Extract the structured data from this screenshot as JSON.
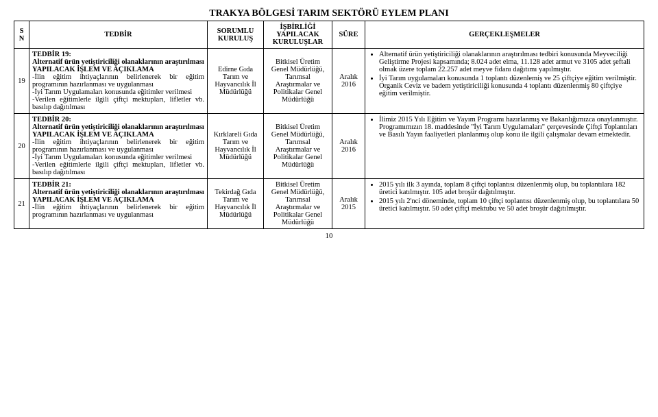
{
  "page_title": "TRAKYA BÖLGESİ TARIM SEKTÖRÜ EYLEM PLANI",
  "headers": {
    "sn": "S N",
    "tedbir": "TEDBİR",
    "sorumlu": "SORUMLU KURULUŞ",
    "isbirligi": "İŞBİRLİĞİ YAPILACAK KURULUŞLAR",
    "sure": "SÜRE",
    "gercek": "GERÇEKLEŞMELER"
  },
  "rows": [
    {
      "sn": "19",
      "tedbir_title": "TEDBİR 19:",
      "tedbir_sub": "Alternatif ürün yetiştiriciliği olanaklarının araştırılması",
      "yapilacak_title": "YAPILACAK İŞLEM VE AÇIKLAMA",
      "tedbir_body": "-İlin eğitim ihtiyaçlarının belirlenerek bir eğitim programının hazırlanması ve uygulanması\n-İyi Tarım Uygulamaları konusunda eğitimler verilmesi\n-Verilen eğitimlerle ilgili çiftçi mektupları, lifletler vb. basılıp dağıtılması",
      "sorumlu": "Edirne Gıda Tarım ve Hayvancılık İl Müdürlüğü",
      "isbirligi": "Bitkisel Üretim Genel Müdürlüğü, Tarımsal Araştırmalar ve Politikalar Genel Müdürlüğü",
      "sure": "Aralık 2016",
      "gercek": [
        "Alternatif ürün yetiştiriciliği olanaklarının araştırılması tedbiri konusunda Meyveciliği Geliştirme Projesi kapsamında; 8.024 adet elma, 11.128 adet armut ve 3105 adet şeftali olmak üzere toplam 22.257 adet meyve fidanı dağıtımı yapılmıştır.",
        "İyi Tarım uygulamaları konusunda 1 toplantı düzenlemiş ve 25 çiftçiye eğitim verilmiştir. Organik Ceviz ve badem yetiştiriciliği konusunda 4 toplantı düzenlenmiş 80 çiftçiye eğitim verilmiştir."
      ]
    },
    {
      "sn": "20",
      "tedbir_title": "TEDBİR 20:",
      "tedbir_sub": "Alternatif ürün yetiştiriciliği olanaklarının araştırılması",
      "yapilacak_title": "YAPILACAK İŞLEM VE AÇIKLAMA",
      "tedbir_body": "-İlin eğitim ihtiyaçlarının belirlenerek bir eğitim programının hazırlanması ve uygulanması\n-İyi Tarım Uygulamaları konusunda eğitimler verilmesi\n-Verilen eğitimlerle ilgili çiftçi mektupları, lifletler vb. basılıp dağıtılması",
      "sorumlu": "Kırklareli Gıda Tarım ve Hayvancılık İl Müdürlüğü",
      "isbirligi": "Bitkisel Üretim Genel Müdürlüğü, Tarımsal Araştırmalar ve Politikalar Genel Müdürlüğü",
      "sure": "Aralık 2016",
      "gercek": [
        "İlimiz 2015 Yılı Eğitim ve Yayım Programı hazırlanmış ve Bakanlığımızca onaylanmıştır. Programımızın 18. maddesinde \"İyi Tarım Uygulamaları\" çerçevesinde Çiftçi Toplantıları ve Basılı Yayın faaliyetleri planlanmış olup konu ile ilgili çalışmalar devam etmektedir."
      ]
    },
    {
      "sn": "21",
      "tedbir_title": "TEDBİR 21:",
      "tedbir_sub": "Alternatif ürün yetiştiriciliği olanaklarının araştırılması",
      "yapilacak_title": "YAPILACAK İŞLEM VE AÇIKLAMA",
      "tedbir_body": "-İlin eğitim ihtiyaçlarının belirlenerek bir eğitim programının hazırlanması ve uygulanması",
      "sorumlu": "Tekirdağ Gıda Tarım ve Hayvancılık İl Müdürlüğü",
      "isbirligi": "Bitkisel Üretim Genel Müdürlüğü, Tarımsal Araştırmalar ve Politikalar Genel Müdürlüğü",
      "sure": "Aralık 2015",
      "gercek": [
        "2015 yılı ilk 3 ayında, toplam 8 çiftçi toplantısı düzenlenmiş olup, bu toplantılara 182 üretici katılmıştır. 105 adet broşür dağıtılmıştır.",
        "2015 yılı 2'nci döneminde, toplam 10 çiftçi toplantısı düzenlenmiş olup, bu toplantılara 50 üretici katılmıştır. 50 adet çiftçi mektubu ve 50 adet broşür dağıtılmıştır."
      ]
    }
  ],
  "page_number": "10"
}
